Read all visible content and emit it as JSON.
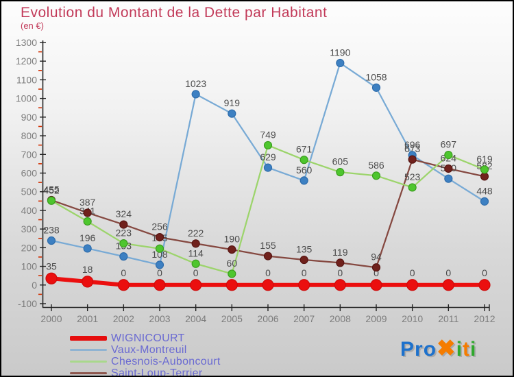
{
  "title": {
    "text": "Evolution du Montant de la Dette par Habitant",
    "subtitle": "(en €)",
    "color": "#c23a59"
  },
  "chart_data": {
    "type": "line",
    "x": [
      2000,
      2001,
      2002,
      2003,
      2004,
      2005,
      2006,
      2007,
      2008,
      2009,
      2010,
      2011,
      2012
    ],
    "series": [
      {
        "name": "WIGNICOURT",
        "values": [
          35,
          18,
          0,
          0,
          0,
          0,
          0,
          0,
          0,
          0,
          0,
          0,
          0
        ],
        "line_color": "#eb0f0f",
        "dot_color": "#eb0f0f",
        "dot_stroke": "#cf0a0a",
        "line_width": 6,
        "dot_radius": 8,
        "legend_color": "#e60d0d",
        "legend_swatch_height": 7
      },
      {
        "name": "Vaux-Montreuil",
        "values": [
          238,
          196,
          153,
          108,
          1023,
          919,
          629,
          560,
          1190,
          1058,
          696,
          570,
          448
        ],
        "line_color": "#78aad5",
        "dot_color": "#3d80c2",
        "dot_stroke": "#2e6cab",
        "line_width": 2.25,
        "dot_radius": 5.5,
        "legend_color": "#8fb3d2",
        "legend_swatch_height": 3
      },
      {
        "name": "Chesnois-Auboncourt",
        "values": [
          452,
          341,
          223,
          195,
          114,
          60,
          749,
          671,
          605,
          586,
          523,
          697,
          619
        ],
        "line_color": "#9cd46b",
        "dot_color": "#4ec62e",
        "dot_stroke": "#3a9d1e",
        "line_width": 2.25,
        "dot_radius": 5.5,
        "legend_color": "#a9d88c",
        "legend_swatch_height": 3
      },
      {
        "name": "Saint-Loup-Terrier",
        "values": [
          455,
          387,
          324,
          256,
          222,
          190,
          155,
          135,
          119,
          94,
          673,
          624,
          582
        ],
        "line_color": "#854840",
        "dot_color": "#70211c",
        "dot_stroke": "#571512",
        "line_width": 2.25,
        "dot_radius": 5.5,
        "legend_color": "#8d564d",
        "legend_swatch_height": 3
      }
    ],
    "ylim": [
      -100,
      1300
    ],
    "ytick_step": 100,
    "yminor_step": 100,
    "yminor_start": -50,
    "grid": false,
    "legend_position": "bottom-left",
    "draw_order": [
      1,
      3,
      2,
      0
    ]
  },
  "axis_style": {
    "axis_color": "#222222",
    "tick_label_color": "#7c7c7c",
    "minor_tick_color": "#d22f00",
    "value_label_color": "#4b4b4b"
  },
  "legend_text_color": "#6a6ad2",
  "logo": {
    "letters": [
      {
        "ch": "P",
        "color": "#1d71cc"
      },
      {
        "ch": "r",
        "color": "#1d71cc"
      },
      {
        "ch": "o",
        "color": "#1d71cc"
      },
      {
        "ch": "✖",
        "color": "#f57c00"
      },
      {
        "ch": "i",
        "color": "#2fa82d"
      },
      {
        "ch": "t",
        "color": "#f57c00"
      },
      {
        "ch": "i",
        "color": "#2fa82d"
      }
    ]
  }
}
